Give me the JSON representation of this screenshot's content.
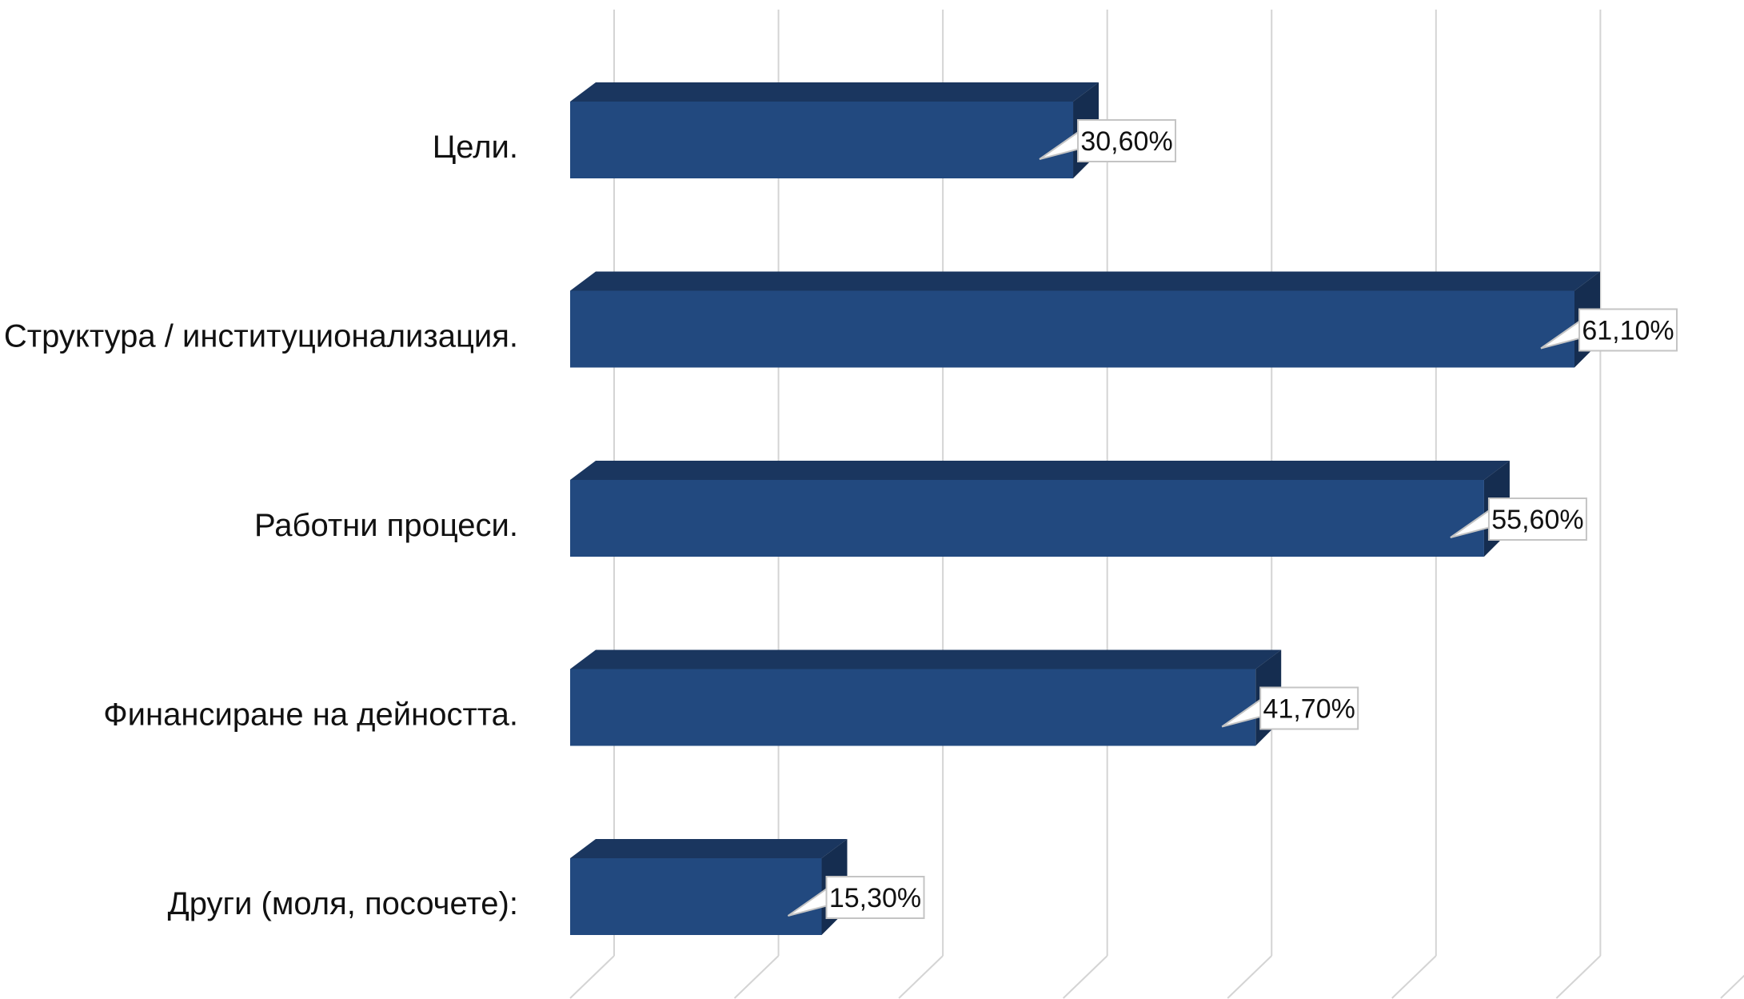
{
  "chart_data": {
    "type": "bar",
    "orientation": "horizontal",
    "style": "3d",
    "categories": [
      "Цели.",
      "Структура / институционализация.",
      "Работни процеси.",
      "Финансиране на дейността.",
      "Други (моля, посочете):"
    ],
    "values": [
      30.6,
      61.1,
      55.6,
      41.7,
      15.3
    ],
    "data_labels": [
      "30,60%",
      "61,10%",
      "55,60%",
      "41,70%",
      "15,30%"
    ],
    "xlim": [
      0,
      70
    ],
    "grid": true,
    "legend": "none",
    "title": "",
    "xlabel": "",
    "ylabel": ""
  },
  "colors": {
    "bar_front": "#22497f",
    "bar_top": "#1a365f",
    "bar_side": "#152d50",
    "grid": "#d4d4d4",
    "label_box_border": "#c4c4c4"
  }
}
